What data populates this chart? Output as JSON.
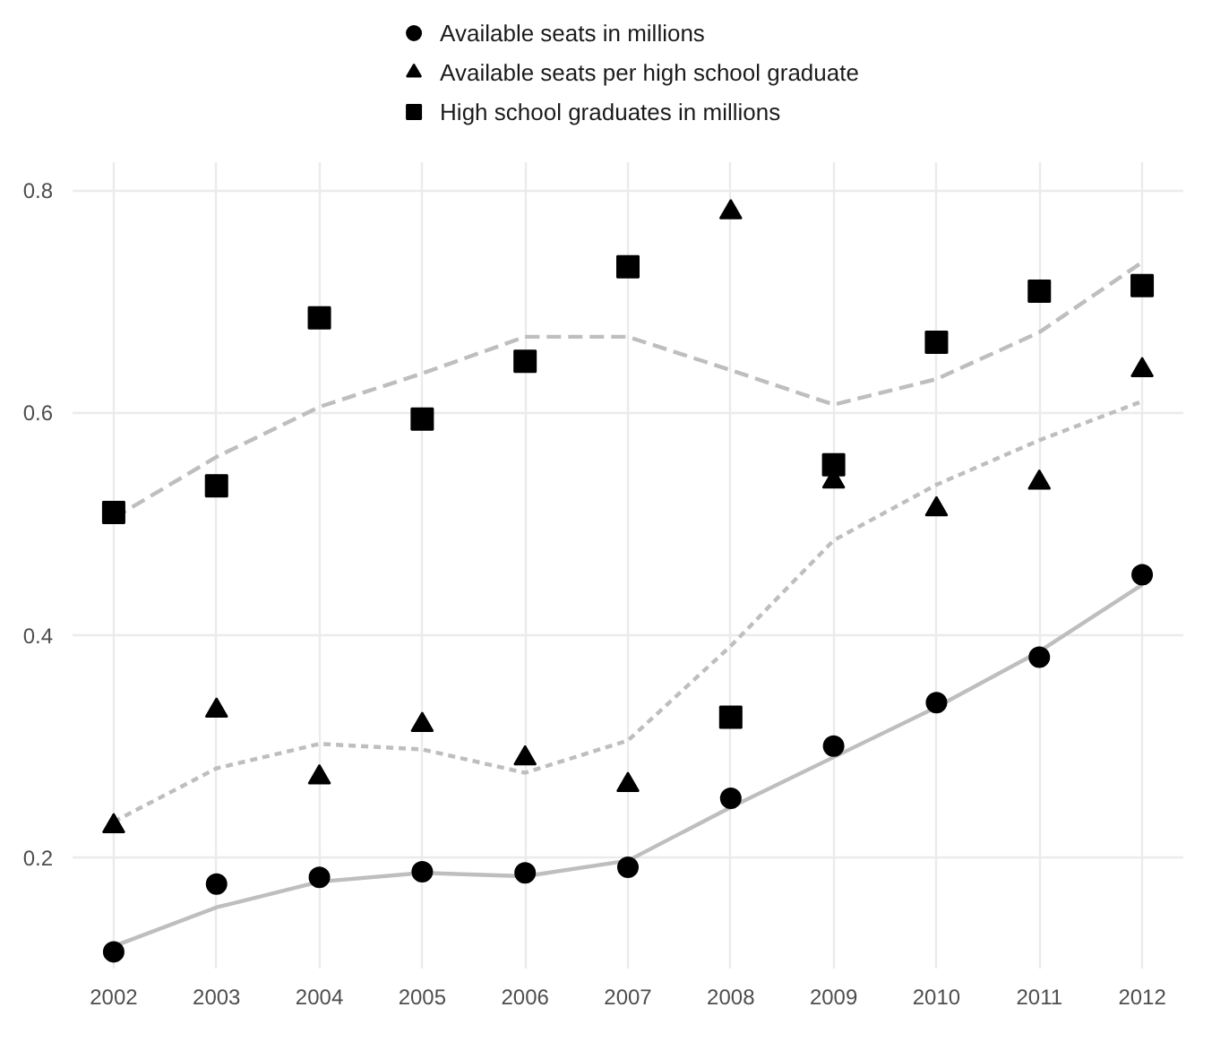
{
  "chart_data": {
    "type": "scatter",
    "x": [
      2002,
      2003,
      2004,
      2005,
      2006,
      2007,
      2008,
      2009,
      2010,
      2011,
      2012
    ],
    "series": [
      {
        "name": "Available seats in millions",
        "type": "scatter",
        "marker": "circle",
        "color": "#000000",
        "values": [
          0.115,
          0.176,
          0.182,
          0.187,
          0.186,
          0.191,
          0.253,
          0.3,
          0.339,
          0.38,
          0.454
        ]
      },
      {
        "name": "Available seats per high school graduate",
        "type": "scatter",
        "marker": "triangle",
        "color": "#000000",
        "values": [
          0.228,
          0.332,
          0.272,
          0.319,
          0.289,
          0.265,
          0.78,
          0.538,
          0.513,
          0.537,
          0.638
        ]
      },
      {
        "name": "High school graduates in millions",
        "type": "scatter",
        "marker": "square",
        "color": "#000000",
        "values": [
          0.51,
          0.534,
          0.685,
          0.594,
          0.646,
          0.731,
          0.326,
          0.553,
          0.663,
          0.709,
          0.714
        ]
      },
      {
        "type": "line",
        "line_style": "solid",
        "color": "#bebebe",
        "values": [
          0.12,
          0.155,
          0.178,
          0.186,
          0.183,
          0.197,
          0.245,
          0.29,
          0.335,
          0.385,
          0.445
        ]
      },
      {
        "type": "line",
        "line_style": "dotted",
        "color": "#bebebe",
        "values": [
          0.232,
          0.28,
          0.302,
          0.297,
          0.276,
          0.305,
          0.39,
          0.485,
          0.535,
          0.575,
          0.61
        ]
      },
      {
        "type": "line",
        "line_style": "dashed",
        "color": "#bebebe",
        "values": [
          0.505,
          0.56,
          0.605,
          0.635,
          0.668,
          0.668,
          0.638,
          0.607,
          0.63,
          0.672,
          0.735
        ]
      }
    ],
    "xticks": [
      2002,
      2003,
      2004,
      2005,
      2006,
      2007,
      2008,
      2009,
      2010,
      2011,
      2012
    ],
    "xlim": [
      2001.6,
      2012.4
    ],
    "ylim": [
      0.1,
      0.825
    ],
    "yticks": [
      0.2,
      0.4,
      0.6,
      0.8
    ],
    "grid": true,
    "legend": "top"
  }
}
